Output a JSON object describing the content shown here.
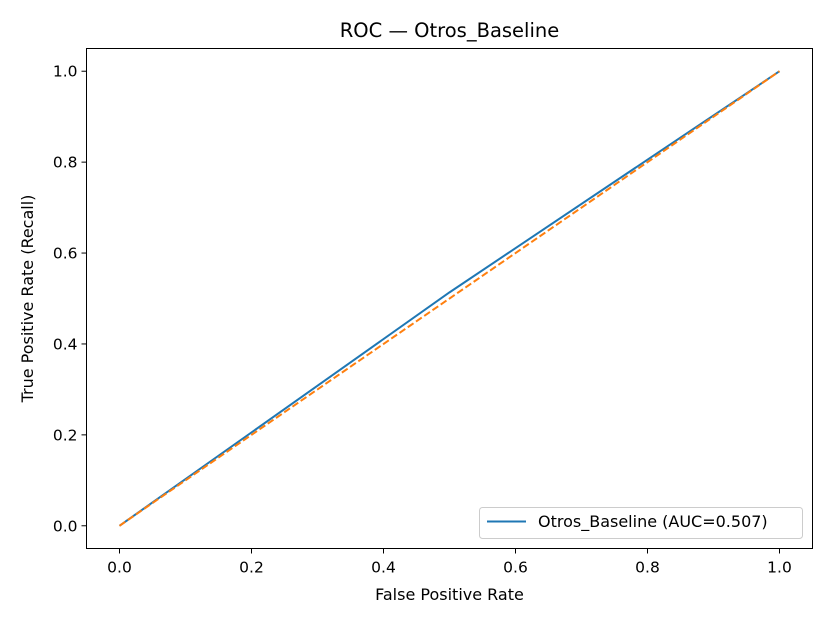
{
  "chart_data": {
    "type": "line",
    "title": "ROC — Otros_Baseline",
    "xlabel": "False Positive Rate",
    "ylabel": "True Positive Rate (Recall)",
    "xlim": [
      -0.05,
      1.05
    ],
    "ylim": [
      -0.05,
      1.05
    ],
    "xticks": [
      0.0,
      0.2,
      0.4,
      0.6,
      0.8,
      1.0
    ],
    "yticks": [
      0.0,
      0.2,
      0.4,
      0.6,
      0.8,
      1.0
    ],
    "xtick_labels": [
      "0.0",
      "0.2",
      "0.4",
      "0.6",
      "0.8",
      "1.0"
    ],
    "ytick_labels": [
      "0.0",
      "0.2",
      "0.4",
      "0.6",
      "0.8",
      "1.0"
    ],
    "grid": false,
    "legend_position": "lower-right",
    "series": [
      {
        "name": "Otros_Baseline (AUC=0.507)",
        "color": "#1f77b4",
        "style": "solid",
        "x": [
          0.0,
          0.5,
          1.0
        ],
        "y": [
          0.0,
          0.5135,
          1.0
        ]
      },
      {
        "color": "#ff7f0e",
        "style": "dashed",
        "x": [
          0.0,
          1.0
        ],
        "y": [
          0.0,
          1.0
        ]
      }
    ]
  }
}
